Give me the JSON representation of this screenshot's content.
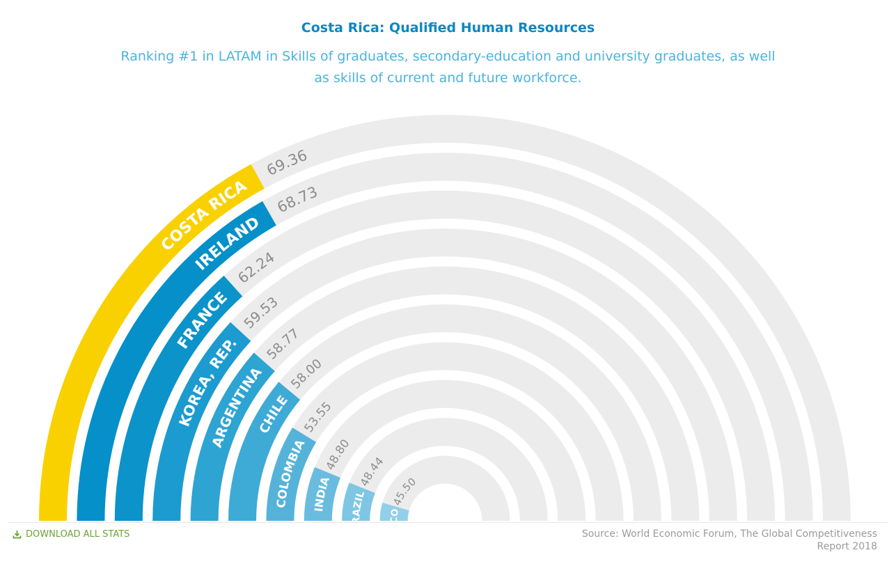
{
  "header": {
    "title": "Costa Rica: Qualified Human Resources",
    "subtitle": "Ranking #1 in LATAM in Skills of graduates, secondary-education and university graduates, as well as skills of current and future workforce."
  },
  "footer": {
    "download_label": "DOWNLOAD ALL STATS",
    "source": "Source: World Economic Forum, The Global Competitiveness Report 2018"
  },
  "colors": {
    "highlight": "#f9d100",
    "track": "#ececec",
    "value_text": "#8c8c8c",
    "bars": [
      "#0590c9",
      "#0c93ca",
      "#1b9bcf",
      "#2ea4d3",
      "#3eaad6",
      "#55b3da",
      "#6abcdf",
      "#7ec6e3",
      "#92cfe8"
    ]
  },
  "chart_data": {
    "type": "radial-bar",
    "title": "Costa Rica: Qualified Human Resources",
    "subtitle": "Ranking #1 in LATAM in Skills of graduates, secondary-education and university graduates, as well as skills of current and future workforce.",
    "categories": [
      "COSTA RICA",
      "IRELAND",
      "FRANCE",
      "KOREA, REP.",
      "ARGENTINA",
      "CHILE",
      "COLOMBIA",
      "INDIA",
      "BRAZIL",
      "MEXICO"
    ],
    "values": [
      69.36,
      68.73,
      62.24,
      59.53,
      58.77,
      58.0,
      53.55,
      48.8,
      48.44,
      45.5
    ],
    "value_labels": [
      "69.36",
      "68.73",
      "62.24",
      "59.53",
      "58.77",
      "58.00",
      "53.55",
      "48.80",
      "48.44",
      "45.50"
    ],
    "highlighted": "COSTA RICA"
  }
}
